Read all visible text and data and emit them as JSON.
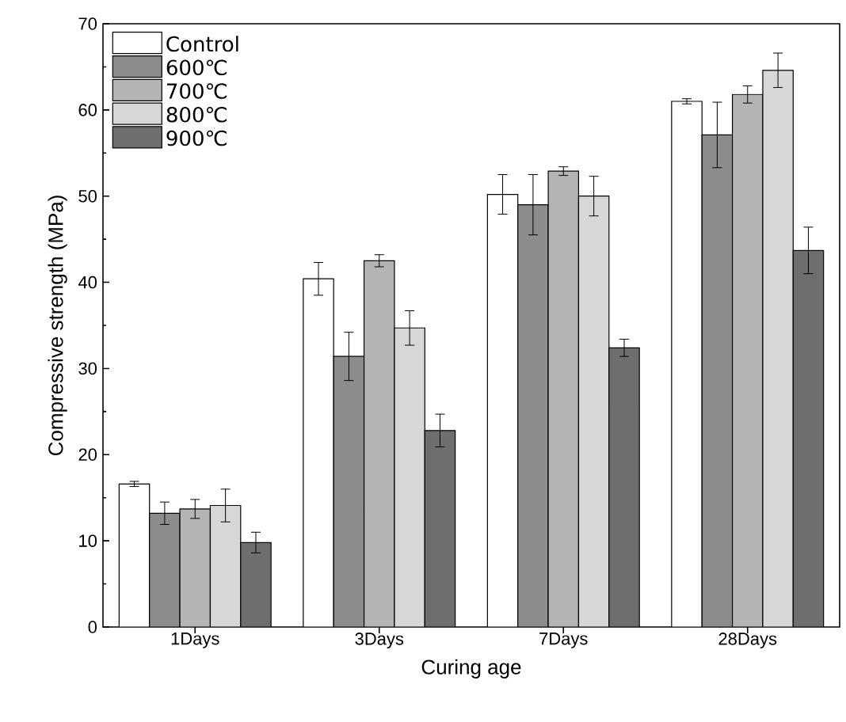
{
  "chart_data": {
    "type": "bar",
    "xlabel": "Curing age",
    "ylabel": "Compressive strength (MPa)",
    "categories": [
      "1Days",
      "3Days",
      "7Days",
      "28Days"
    ],
    "series": [
      {
        "name": "Control",
        "color": "#ffffff",
        "values": [
          16.6,
          40.4,
          50.2,
          61.0
        ],
        "errors": [
          0.3,
          1.9,
          2.3,
          0.3
        ]
      },
      {
        "name": "600℃",
        "color": "#8c8c8c",
        "values": [
          13.2,
          31.4,
          49.0,
          57.1
        ],
        "errors": [
          1.3,
          2.8,
          3.5,
          3.8
        ]
      },
      {
        "name": "700℃",
        "color": "#b4b4b4",
        "values": [
          13.7,
          42.5,
          52.9,
          61.8
        ],
        "errors": [
          1.1,
          0.7,
          0.5,
          1.0
        ]
      },
      {
        "name": "800℃",
        "color": "#d7d7d7",
        "values": [
          14.1,
          34.7,
          50.0,
          64.6
        ],
        "errors": [
          1.9,
          2.0,
          2.3,
          2.0
        ]
      },
      {
        "name": "900℃",
        "color": "#6e6e6e",
        "values": [
          9.8,
          22.8,
          32.4,
          43.7
        ],
        "errors": [
          1.2,
          1.9,
          1.0,
          2.7
        ]
      }
    ],
    "ylim": [
      0,
      70
    ],
    "yticks": [
      0,
      10,
      20,
      30,
      40,
      50,
      60,
      70
    ],
    "grid": false,
    "legend": "top left"
  }
}
